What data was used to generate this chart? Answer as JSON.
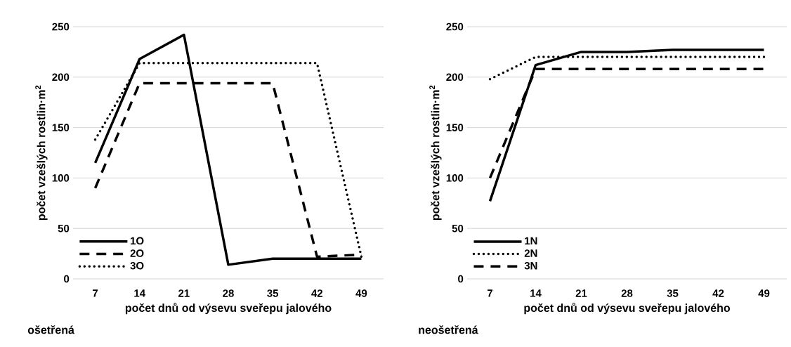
{
  "chart_data": [
    {
      "type": "line",
      "categories": [
        "7",
        "14",
        "21",
        "28",
        "35",
        "42",
        "49"
      ],
      "xlabel": "počet dnů od výsevu sveřepu jalového",
      "ylabel": "počet vzešlých rostlin·m$^{2}$",
      "ylim": [
        0,
        250
      ],
      "yticks": [
        0,
        50,
        100,
        150,
        200,
        250
      ],
      "grid": "y",
      "legend": "bottom left",
      "annotations": [
        "ošetřená"
      ],
      "series": [
        {
          "name": "1O",
          "color": "#000000",
          "line_style": "solid",
          "values": [
            115,
            218,
            242,
            14,
            20,
            20,
            20
          ]
        },
        {
          "name": "2O",
          "color": "#000000",
          "line_style": "dashed",
          "values": [
            90,
            194,
            194,
            194,
            194,
            22,
            24
          ]
        },
        {
          "name": "3O",
          "color": "#000000",
          "line_style": "dotted",
          "values": [
            138,
            214,
            214,
            214,
            214,
            214,
            22
          ]
        }
      ]
    },
    {
      "type": "line",
      "categories": [
        "7",
        "14",
        "21",
        "28",
        "35",
        "42",
        "49"
      ],
      "xlabel": "počet dnů od výsevu sveřepu jalového",
      "ylabel": "počet vzešlých rostlin·m$^{2}$",
      "ylim": [
        0,
        250
      ],
      "yticks": [
        0,
        50,
        100,
        150,
        200,
        250
      ],
      "grid": "y",
      "legend": "bottom left",
      "annotations": [
        "neošetřená"
      ],
      "series": [
        {
          "name": "1N",
          "color": "#000000",
          "line_style": "solid",
          "values": [
            77,
            212,
            225,
            225,
            227,
            227,
            227
          ]
        },
        {
          "name": "2N",
          "color": "#000000",
          "line_style": "dotted",
          "values": [
            198,
            220,
            220,
            220,
            220,
            220,
            220
          ]
        },
        {
          "name": "3N",
          "color": "#000000",
          "line_style": "dashed",
          "values": [
            100,
            208,
            208,
            208,
            208,
            208,
            208
          ]
        }
      ]
    }
  ]
}
